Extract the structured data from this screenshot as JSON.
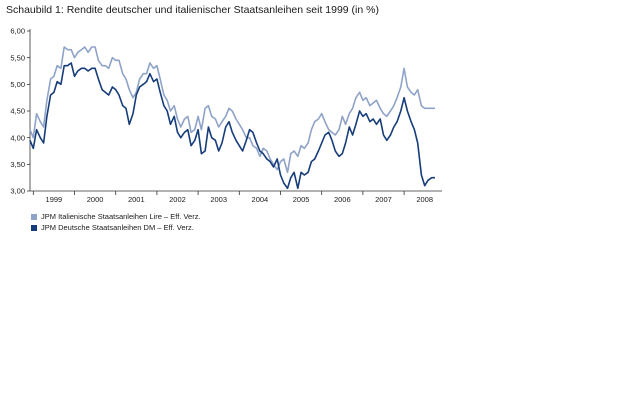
{
  "title": "Schaubild 1: Rendite deutscher und italienischer Staatsanleihen seit 1999 (in %)",
  "chart_data": {
    "type": "line",
    "title": "Schaubild 1: Rendite deutscher und italienischer Staatsanleihen seit 1999 (in %)",
    "ylim": [
      3.0,
      6.0
    ],
    "y_ticks": [
      "6,00",
      "5,50",
      "5,00",
      "4,50",
      "4,00",
      "3,50",
      "3,00"
    ],
    "y_tick_values": [
      6.0,
      5.5,
      5.0,
      4.5,
      4.0,
      3.5,
      3.0
    ],
    "x_ticks": [
      "1999",
      "2000",
      "2001",
      "2002",
      "2003",
      "2004",
      "2005",
      "2006",
      "2007",
      "2008"
    ],
    "xlim": [
      1998.92,
      2008.92
    ],
    "grid": false,
    "legend_placement": "bottom-left",
    "series": [
      {
        "name": "JPM Italienische Staatsanleihen Lire – Eff. Verz.",
        "color": "#8fa3c8",
        "x": [
          1998.92,
          1999.0,
          1999.08,
          1999.17,
          1999.25,
          1999.33,
          1999.42,
          1999.5,
          1999.58,
          1999.67,
          1999.75,
          1999.83,
          1999.92,
          2000.0,
          2000.08,
          2000.17,
          2000.25,
          2000.33,
          2000.42,
          2000.5,
          2000.58,
          2000.67,
          2000.75,
          2000.83,
          2000.92,
          2001.0,
          2001.08,
          2001.17,
          2001.25,
          2001.33,
          2001.42,
          2001.5,
          2001.58,
          2001.67,
          2001.75,
          2001.83,
          2001.92,
          2002.0,
          2002.08,
          2002.17,
          2002.25,
          2002.33,
          2002.42,
          2002.5,
          2002.58,
          2002.67,
          2002.75,
          2002.83,
          2002.92,
          2003.0,
          2003.08,
          2003.17,
          2003.25,
          2003.33,
          2003.42,
          2003.5,
          2003.58,
          2003.67,
          2003.75,
          2003.83,
          2003.92,
          2004.0,
          2004.08,
          2004.17,
          2004.25,
          2004.33,
          2004.42,
          2004.5,
          2004.58,
          2004.67,
          2004.75,
          2004.83,
          2004.92,
          2005.0,
          2005.08,
          2005.17,
          2005.25,
          2005.33,
          2005.42,
          2005.5,
          2005.58,
          2005.67,
          2005.75,
          2005.83,
          2005.92,
          2006.0,
          2006.08,
          2006.17,
          2006.25,
          2006.33,
          2006.42,
          2006.5,
          2006.58,
          2006.67,
          2006.75,
          2006.83,
          2006.92,
          2007.0,
          2007.08,
          2007.17,
          2007.25,
          2007.33,
          2007.42,
          2007.5,
          2007.58,
          2007.67,
          2007.75,
          2007.83,
          2007.92,
          2008.0,
          2008.08,
          2008.17,
          2008.25,
          2008.33,
          2008.42,
          2008.5,
          2008.58,
          2008.67,
          2008.75
        ],
        "values": [
          4.15,
          4.0,
          4.45,
          4.3,
          4.2,
          4.7,
          5.1,
          5.15,
          5.35,
          5.3,
          5.7,
          5.65,
          5.65,
          5.5,
          5.6,
          5.65,
          5.7,
          5.6,
          5.7,
          5.7,
          5.45,
          5.35,
          5.35,
          5.3,
          5.5,
          5.45,
          5.45,
          5.2,
          5.1,
          4.9,
          4.75,
          4.85,
          5.1,
          5.2,
          5.2,
          5.4,
          5.3,
          5.35,
          5.1,
          4.8,
          4.7,
          4.5,
          4.6,
          4.35,
          4.2,
          4.35,
          4.4,
          4.1,
          4.15,
          4.4,
          4.15,
          4.55,
          4.6,
          4.4,
          4.35,
          4.2,
          4.3,
          4.4,
          4.55,
          4.5,
          4.35,
          4.25,
          4.15,
          4.0,
          4.0,
          3.85,
          3.8,
          3.65,
          3.8,
          3.75,
          3.6,
          3.5,
          3.4,
          3.55,
          3.6,
          3.35,
          3.7,
          3.75,
          3.65,
          3.85,
          3.8,
          3.9,
          4.15,
          4.3,
          4.35,
          4.45,
          4.3,
          4.15,
          4.1,
          4.05,
          4.15,
          4.4,
          4.25,
          4.45,
          4.55,
          4.75,
          4.85,
          4.7,
          4.75,
          4.6,
          4.65,
          4.7,
          4.55,
          4.45,
          4.4,
          4.5,
          4.6,
          4.75,
          4.95,
          5.3,
          4.95,
          4.85,
          4.8,
          4.9,
          4.6,
          4.55,
          4.55,
          4.55,
          4.55
        ]
      },
      {
        "name": "JPM Deutsche Staatsanleihen DM – Eff. Verz.",
        "color": "#163d7a",
        "x": [
          1998.92,
          1999.0,
          1999.08,
          1999.17,
          1999.25,
          1999.33,
          1999.42,
          1999.5,
          1999.58,
          1999.67,
          1999.75,
          1999.83,
          1999.92,
          2000.0,
          2000.08,
          2000.17,
          2000.25,
          2000.33,
          2000.42,
          2000.5,
          2000.58,
          2000.67,
          2000.75,
          2000.83,
          2000.92,
          2001.0,
          2001.08,
          2001.17,
          2001.25,
          2001.33,
          2001.42,
          2001.5,
          2001.58,
          2001.67,
          2001.75,
          2001.83,
          2001.92,
          2002.0,
          2002.08,
          2002.17,
          2002.25,
          2002.33,
          2002.42,
          2002.5,
          2002.58,
          2002.67,
          2002.75,
          2002.83,
          2002.92,
          2003.0,
          2003.08,
          2003.17,
          2003.25,
          2003.33,
          2003.42,
          2003.5,
          2003.58,
          2003.67,
          2003.75,
          2003.83,
          2003.92,
          2004.0,
          2004.08,
          2004.17,
          2004.25,
          2004.33,
          2004.42,
          2004.5,
          2004.58,
          2004.67,
          2004.75,
          2004.83,
          2004.92,
          2005.0,
          2005.08,
          2005.17,
          2005.25,
          2005.33,
          2005.42,
          2005.5,
          2005.58,
          2005.67,
          2005.75,
          2005.83,
          2005.92,
          2006.0,
          2006.08,
          2006.17,
          2006.25,
          2006.33,
          2006.42,
          2006.5,
          2006.58,
          2006.67,
          2006.75,
          2006.83,
          2006.92,
          2007.0,
          2007.08,
          2007.17,
          2007.25,
          2007.33,
          2007.42,
          2007.5,
          2007.58,
          2007.67,
          2007.75,
          2007.83,
          2007.92,
          2008.0,
          2008.08,
          2008.17,
          2008.25,
          2008.33,
          2008.42,
          2008.5,
          2008.58,
          2008.67,
          2008.75
        ],
        "values": [
          3.95,
          3.8,
          4.15,
          4.0,
          3.9,
          4.4,
          4.8,
          4.85,
          5.05,
          5.0,
          5.35,
          5.35,
          5.4,
          5.15,
          5.25,
          5.3,
          5.3,
          5.25,
          5.3,
          5.3,
          5.1,
          4.9,
          4.85,
          4.8,
          4.95,
          4.9,
          4.8,
          4.6,
          4.55,
          4.25,
          4.45,
          4.8,
          4.95,
          5.0,
          5.05,
          5.2,
          5.05,
          5.1,
          4.85,
          4.6,
          4.5,
          4.25,
          4.4,
          4.1,
          4.0,
          4.1,
          4.15,
          3.85,
          3.95,
          4.15,
          3.7,
          3.75,
          4.2,
          4.0,
          3.95,
          3.75,
          3.9,
          4.2,
          4.3,
          4.1,
          3.95,
          3.85,
          3.75,
          3.95,
          4.15,
          4.1,
          3.9,
          3.75,
          3.7,
          3.6,
          3.55,
          3.45,
          3.6,
          3.3,
          3.15,
          3.05,
          3.25,
          3.35,
          3.05,
          3.35,
          3.3,
          3.35,
          3.55,
          3.6,
          3.75,
          3.9,
          4.05,
          4.1,
          3.95,
          3.75,
          3.65,
          3.7,
          3.9,
          4.2,
          4.05,
          4.25,
          4.5,
          4.4,
          4.45,
          4.3,
          4.35,
          4.25,
          4.35,
          4.05,
          3.95,
          4.05,
          4.2,
          4.3,
          4.5,
          4.75,
          4.5,
          4.3,
          4.15,
          3.9,
          3.3,
          3.1,
          3.2,
          3.25,
          3.25
        ]
      }
    ]
  }
}
